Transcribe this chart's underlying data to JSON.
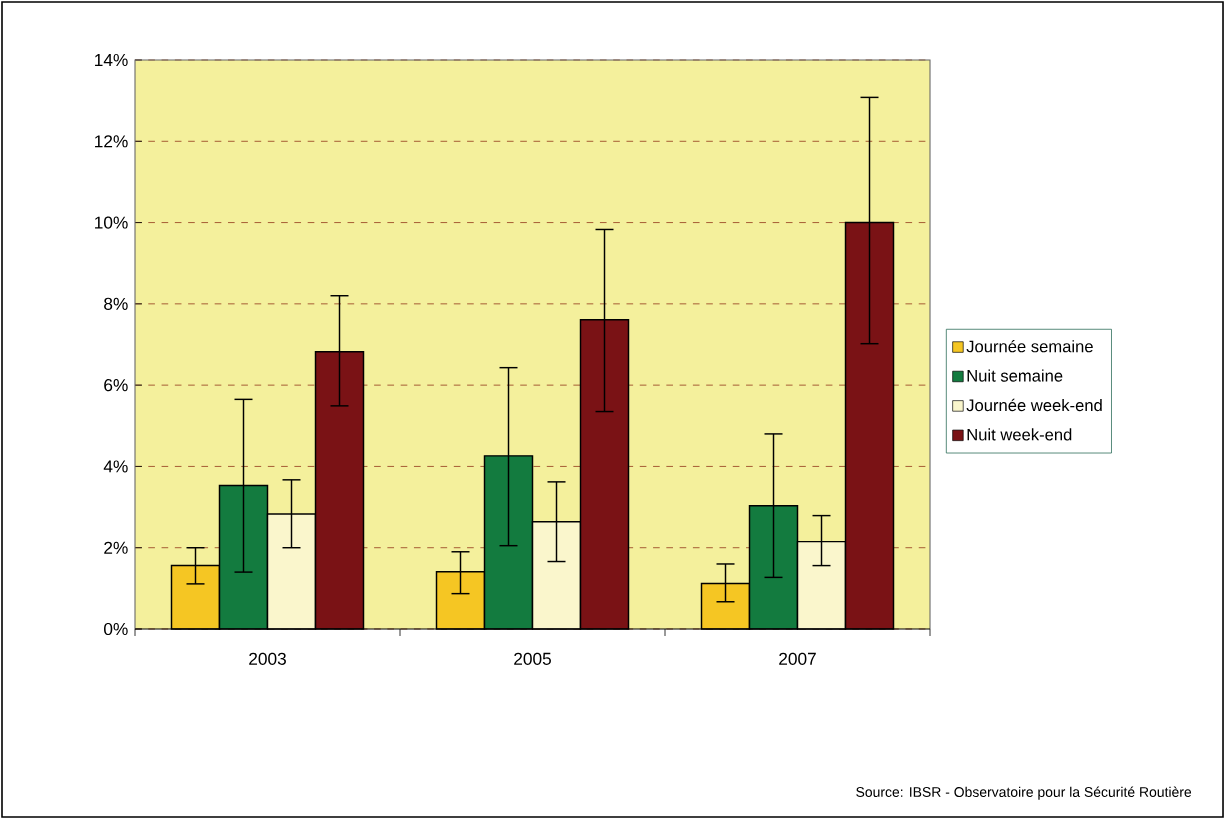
{
  "chart_data": {
    "type": "bar",
    "categories": [
      "2003",
      "2005",
      "2007"
    ],
    "series": [
      {
        "name": "Journée semaine",
        "color": "#f5c623",
        "values": [
          1.56,
          1.41,
          1.12
        ],
        "errors": [
          [
            1.11,
            2.0
          ],
          [
            0.87,
            1.9
          ],
          [
            0.67,
            1.6
          ]
        ]
      },
      {
        "name": "Nuit semaine",
        "color": "#137b3f",
        "values": [
          3.53,
          4.26,
          3.03
        ],
        "errors": [
          [
            1.4,
            5.65
          ],
          [
            2.05,
            6.43
          ],
          [
            1.27,
            4.8
          ]
        ]
      },
      {
        "name": "Journée week-end",
        "color": "#faf6cc",
        "values": [
          2.83,
          2.64,
          2.15
        ],
        "errors": [
          [
            2.0,
            3.67
          ],
          [
            1.66,
            3.62
          ],
          [
            1.56,
            2.79
          ]
        ]
      },
      {
        "name": "Nuit week-end",
        "color": "#7a1215",
        "values": [
          6.82,
          7.61,
          10.0
        ],
        "errors": [
          [
            5.49,
            8.2
          ],
          [
            5.35,
            9.83
          ],
          [
            7.02,
            13.08
          ]
        ]
      }
    ],
    "ylim": [
      0,
      14
    ],
    "yticks": [
      {
        "value": 0,
        "label": "0%"
      },
      {
        "value": 2,
        "label": "2%"
      },
      {
        "value": 4,
        "label": "4%"
      },
      {
        "value": 6,
        "label": "6%"
      },
      {
        "value": 8,
        "label": "8%"
      },
      {
        "value": 10,
        "label": "10%"
      },
      {
        "value": 12,
        "label": "12%"
      },
      {
        "value": 14,
        "label": "14%"
      }
    ],
    "grid": "y",
    "legend": "right",
    "annotations": [
      "Source: IBSR - Observatoire pour la Sécurité Routière"
    ]
  }
}
